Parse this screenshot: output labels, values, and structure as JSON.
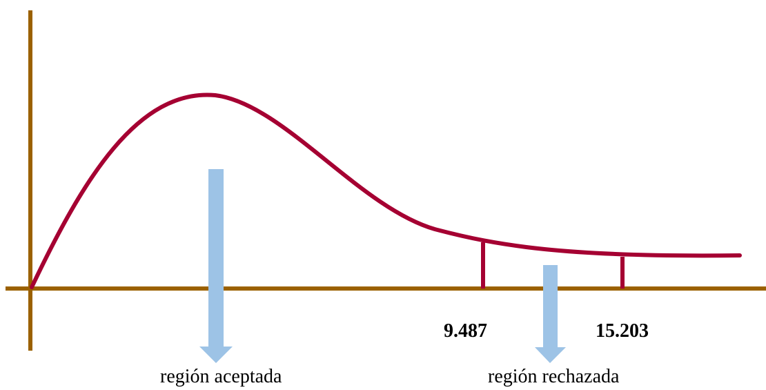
{
  "critical_values": [
    "9.487",
    "15.203"
  ],
  "regions": {
    "accepted": "región aceptada",
    "rejected": "región rechazada"
  },
  "colors": {
    "axis": "#9b6100",
    "curve": "#a50032",
    "arrow": "#9dc3e6",
    "text": "#000000"
  }
}
